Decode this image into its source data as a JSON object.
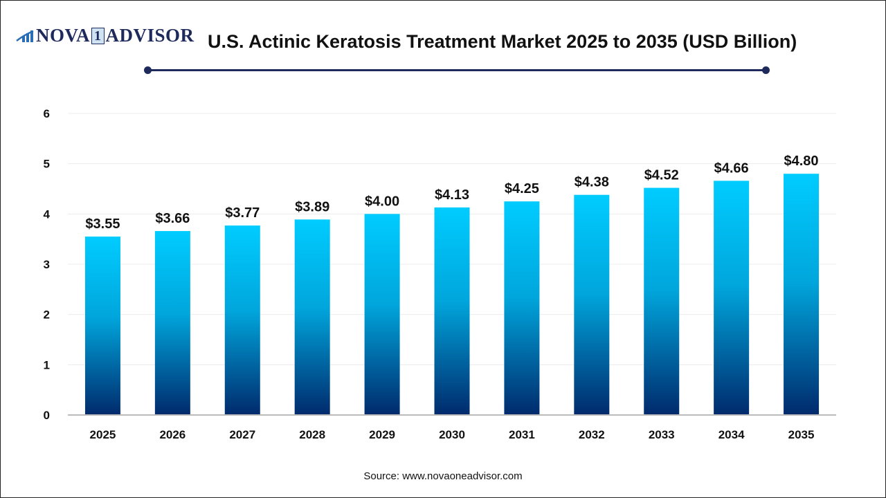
{
  "logo": {
    "text_left": "NOVA",
    "text_mid": "1",
    "text_right": "ADVISOR"
  },
  "source": "Source: www.novaoneadvisor.com",
  "colors": {
    "bar_top": "#00CCFF",
    "bar_bottom": "#002A6C",
    "accent": "#1F2A5C"
  },
  "chart_data": {
    "type": "bar",
    "title": "U.S. Actinic Keratosis Treatment Market 2025 to 2035 (USD Billion)",
    "categories": [
      "2025",
      "2026",
      "2027",
      "2028",
      "2029",
      "2030",
      "2031",
      "2032",
      "2033",
      "2034",
      "2035"
    ],
    "values": [
      3.55,
      3.66,
      3.77,
      3.89,
      4.0,
      4.13,
      4.25,
      4.38,
      4.52,
      4.66,
      4.8
    ],
    "data_labels": [
      "$3.55",
      "$3.66",
      "$3.77",
      "$3.89",
      "$4.00",
      "$4.13",
      "$4.25",
      "$4.38",
      "$4.52",
      "$4.66",
      "$4.80"
    ],
    "yticks": [
      0,
      1,
      2,
      3,
      4,
      5,
      6
    ],
    "ylim": [
      0,
      6
    ],
    "xlabel": "",
    "ylabel": "",
    "grid": true,
    "legend": "none"
  }
}
